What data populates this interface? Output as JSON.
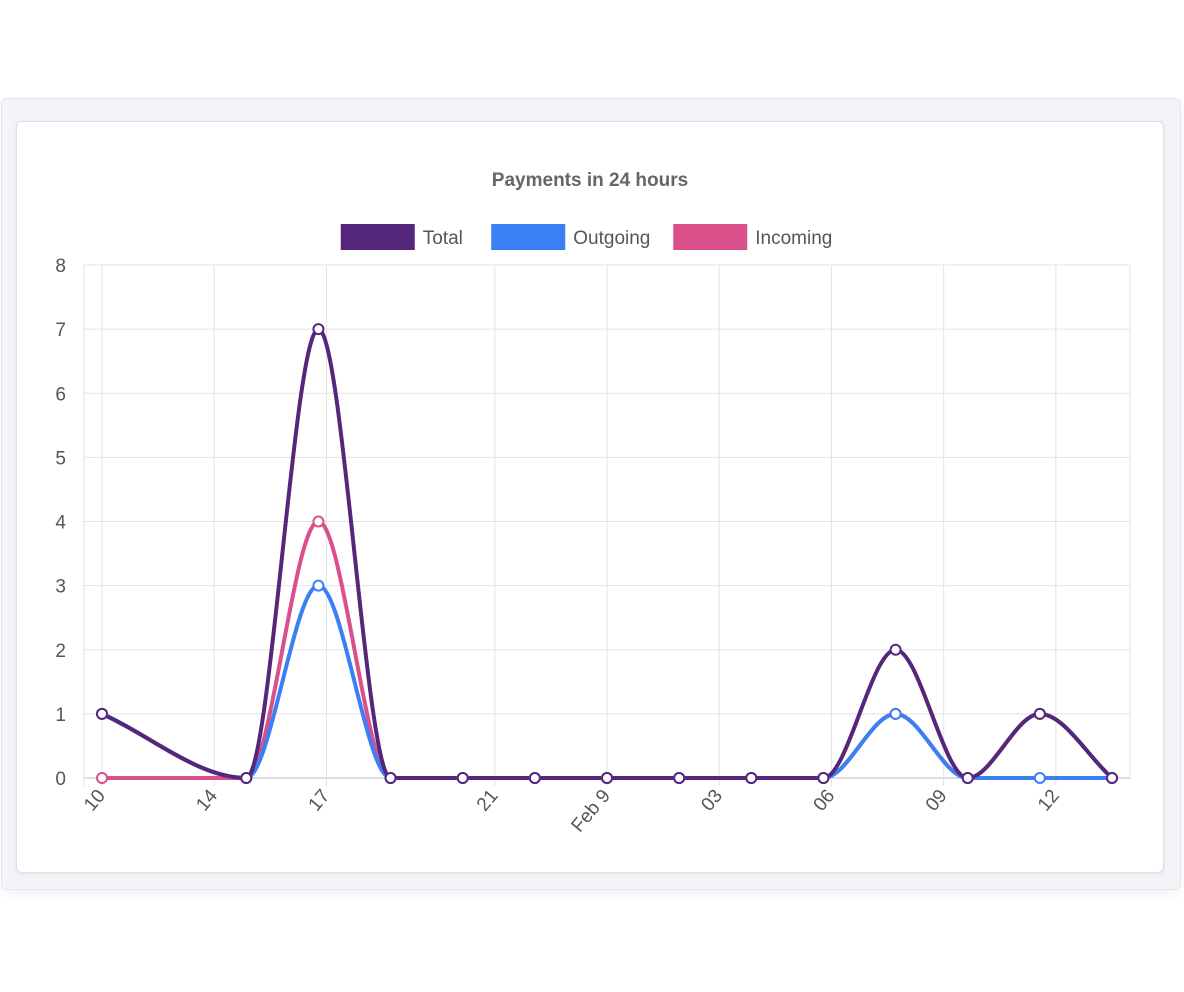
{
  "chart_data": {
    "type": "line",
    "title": "Payments in 24 hours",
    "x": [
      "10",
      "",
      "14",
      "",
      "17",
      "",
      "",
      "21",
      "",
      "Feb 9",
      "",
      "03",
      "",
      "06",
      "",
      "09",
      "",
      "12",
      ""
    ],
    "x_tick_labels": [
      "10",
      "14",
      "17",
      "21",
      "Feb 9",
      "03",
      "06",
      "09",
      "12"
    ],
    "ylim": [
      0,
      8
    ],
    "y_ticks": [
      "0",
      "1",
      "2",
      "3",
      "4",
      "5",
      "6",
      "7",
      "8"
    ],
    "grid": true,
    "legend_position": "top",
    "series": [
      {
        "name": "Total",
        "color": "#54277a",
        "points": [
          [
            0,
            1
          ],
          [
            2,
            0
          ],
          [
            3,
            7
          ],
          [
            4,
            0
          ],
          [
            5,
            0
          ],
          [
            6,
            0
          ],
          [
            7,
            0
          ],
          [
            8,
            0
          ],
          [
            9,
            0
          ],
          [
            10,
            0
          ],
          [
            11,
            2
          ],
          [
            12,
            0
          ],
          [
            13,
            1
          ],
          [
            14,
            0
          ]
        ]
      },
      {
        "name": "Outgoing",
        "color": "#3b7ff5",
        "points": [
          [
            0,
            1
          ],
          [
            2,
            0
          ],
          [
            3,
            3
          ],
          [
            4,
            0
          ],
          [
            5,
            0
          ],
          [
            6,
            0
          ],
          [
            7,
            0
          ],
          [
            8,
            0
          ],
          [
            9,
            0
          ],
          [
            10,
            0
          ],
          [
            11,
            1
          ],
          [
            12,
            0
          ],
          [
            13,
            0
          ],
          [
            14,
            0
          ]
        ]
      },
      {
        "name": "Incoming",
        "color": "#d9508a",
        "points": [
          [
            0,
            0
          ],
          [
            2,
            0
          ],
          [
            3,
            4
          ],
          [
            4,
            0
          ],
          [
            5,
            0
          ],
          [
            6,
            0
          ],
          [
            7,
            0
          ],
          [
            8,
            0
          ],
          [
            9,
            0
          ],
          [
            10,
            0
          ],
          [
            11,
            1
          ],
          [
            12,
            0
          ],
          [
            13,
            1
          ],
          [
            14,
            0
          ]
        ]
      }
    ]
  }
}
